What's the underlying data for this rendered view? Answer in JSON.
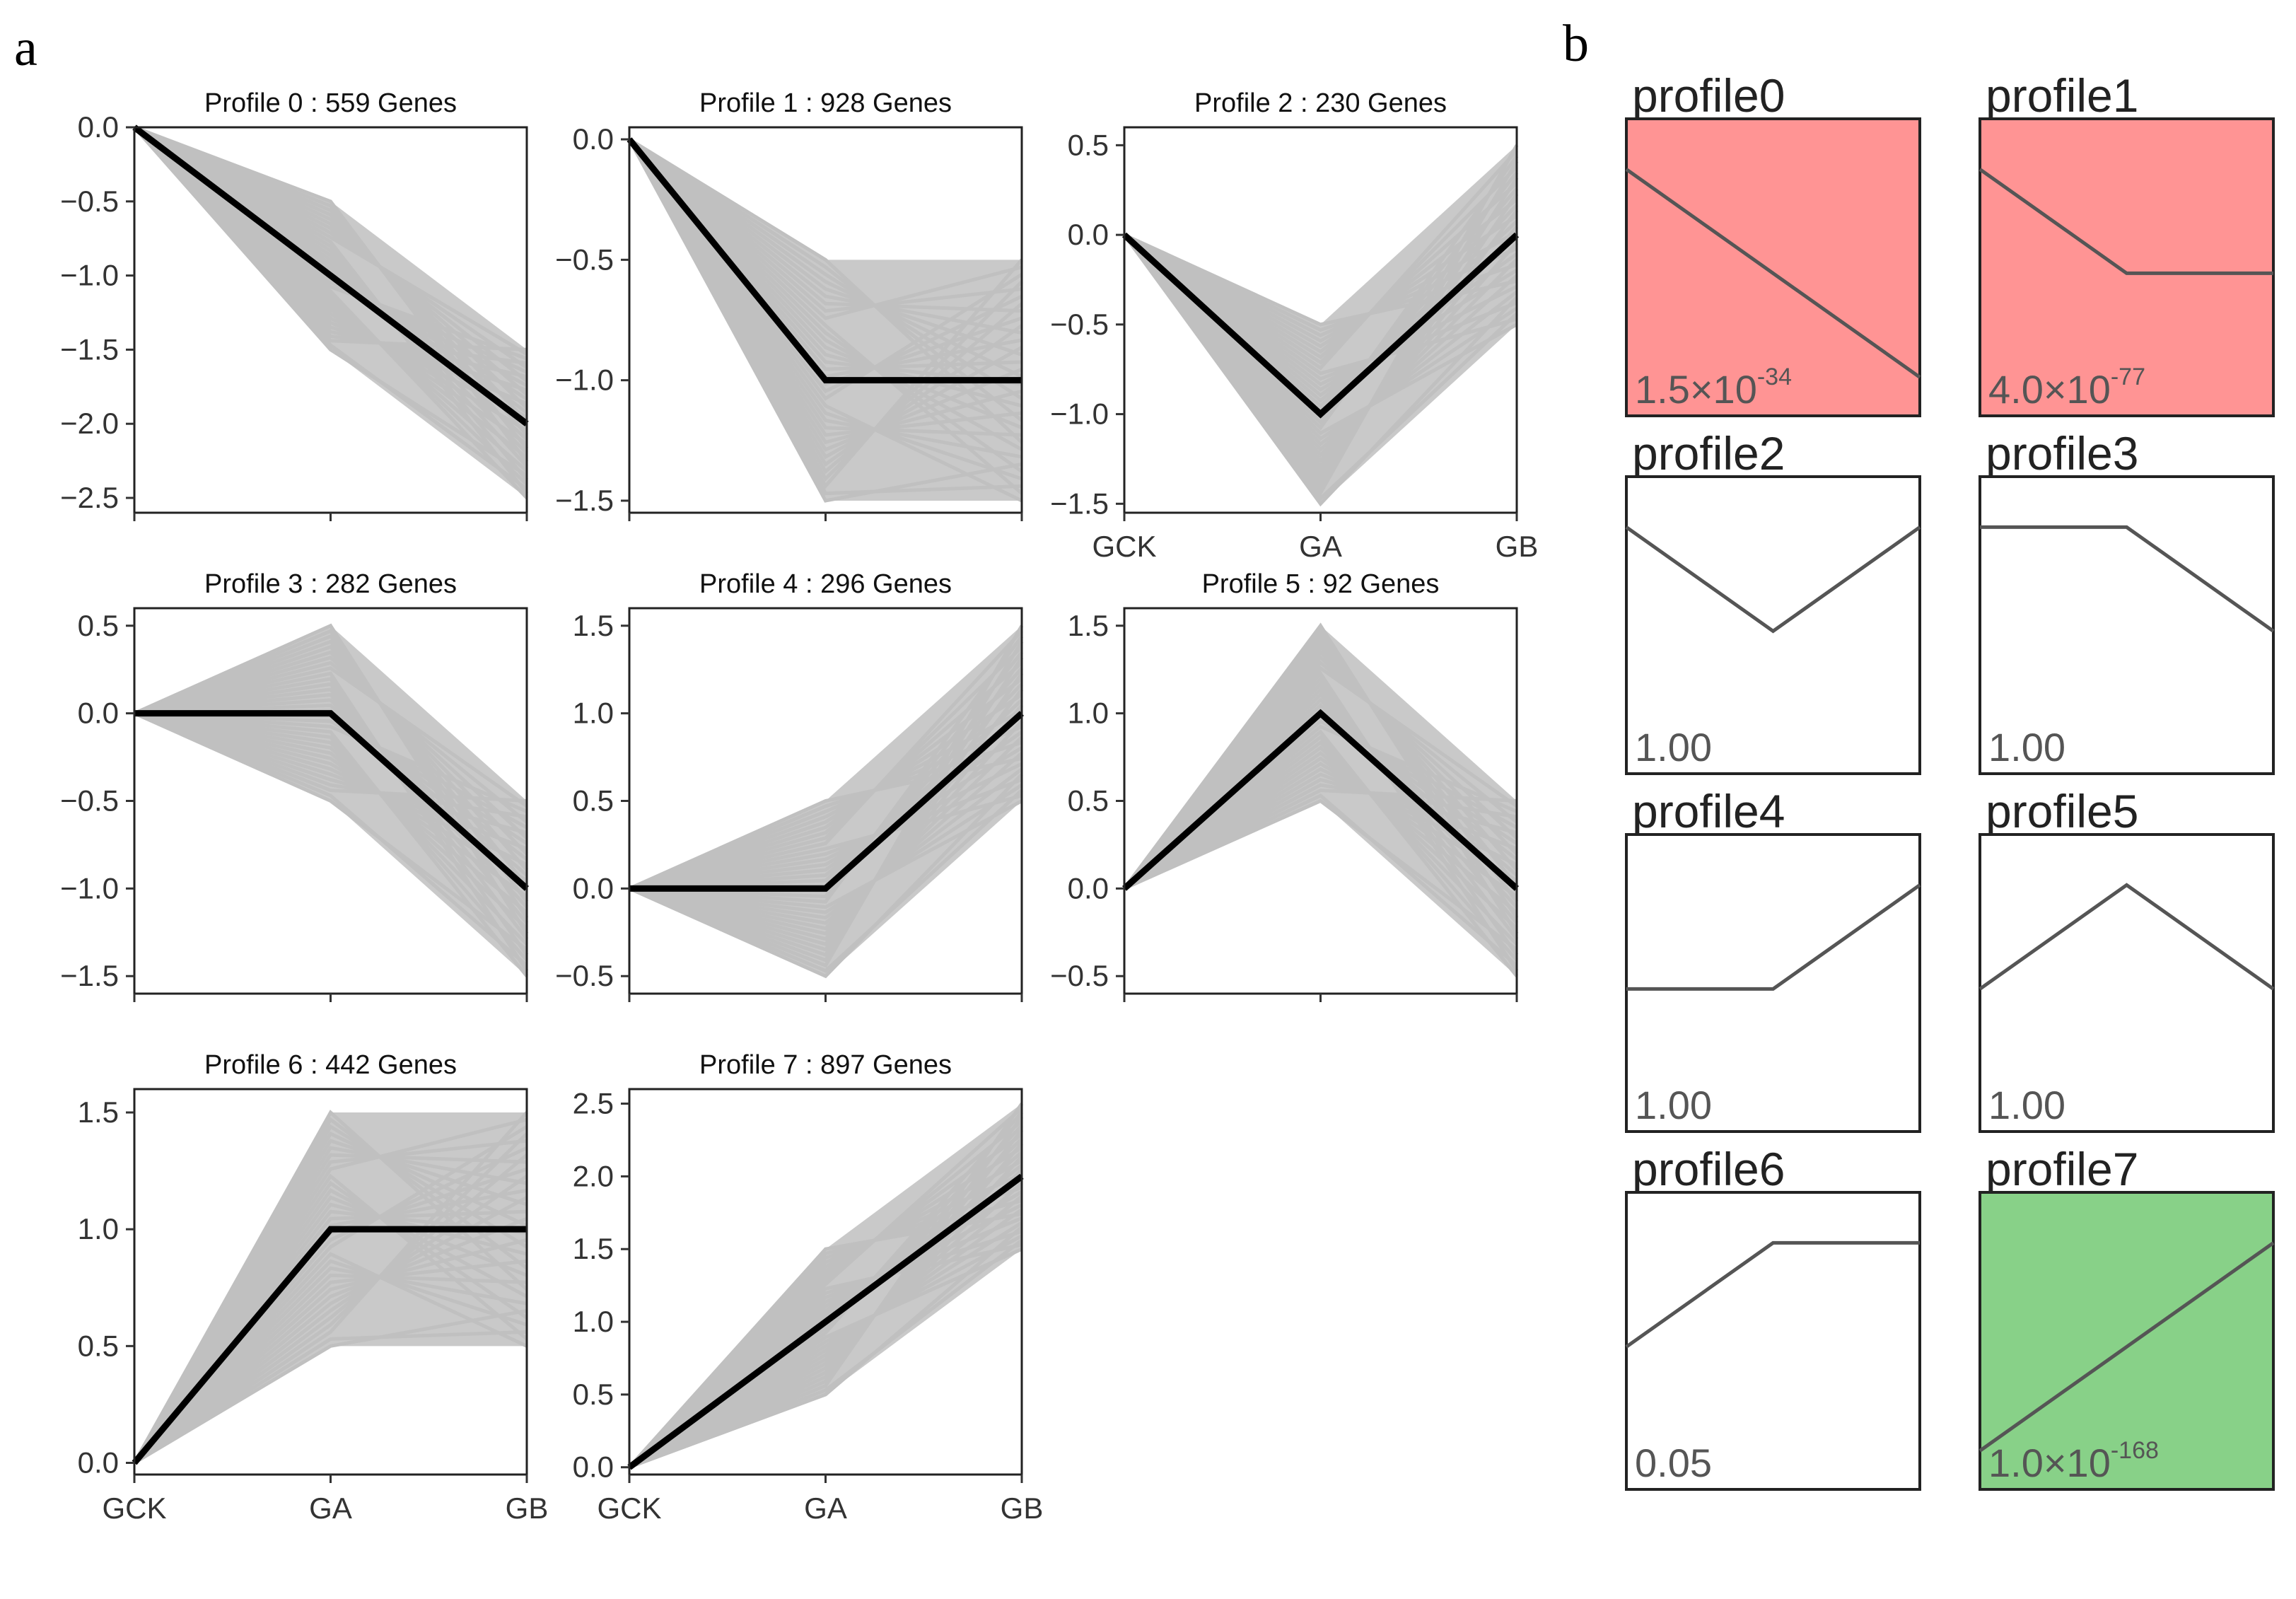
{
  "panels": {
    "a": "a",
    "b": "b"
  },
  "chart_data": [
    {
      "type": "line",
      "panel": "a",
      "x_categories": [
        "GCK",
        "GA",
        "GB"
      ],
      "profiles": [
        {
          "title": "Profile 0 : 559 Genes",
          "ylim": [
            -2.6,
            0.0
          ],
          "yticks": [
            "0.0",
            "−0.5",
            "−1.0",
            "−1.5",
            "−2.0",
            "−2.5"
          ],
          "ytick_values": [
            0,
            -0.5,
            -1,
            -1.5,
            -2,
            -2.5
          ],
          "model": [
            0,
            -1,
            -2
          ],
          "band_low": [
            0,
            -1.5,
            -2.5
          ],
          "band_high": [
            0,
            -0.5,
            -1.5
          ],
          "show_x_labels": false
        },
        {
          "title": "Profile 1 : 928 Genes",
          "ylim": [
            -1.55,
            0.05
          ],
          "yticks": [
            "0.0",
            "−0.5",
            "−1.0",
            "−1.5"
          ],
          "ytick_values": [
            0,
            -0.5,
            -1,
            -1.5
          ],
          "model": [
            0,
            -1,
            -1
          ],
          "band_low": [
            0,
            -1.5,
            -1.5
          ],
          "band_high": [
            0,
            -0.5,
            -0.5
          ],
          "show_x_labels": false
        },
        {
          "title": "Profile 2 : 230 Genes",
          "ylim": [
            -1.55,
            0.6
          ],
          "yticks": [
            "0.5",
            "0.0",
            "−0.5",
            "−1.0",
            "−1.5"
          ],
          "ytick_values": [
            0.5,
            0,
            -0.5,
            -1,
            -1.5
          ],
          "model": [
            0,
            -1,
            0
          ],
          "band_low": [
            0,
            -1.5,
            -0.5
          ],
          "band_high": [
            0,
            -0.5,
            0.5
          ],
          "show_x_labels": true
        },
        {
          "title": "Profile 3 : 282 Genes",
          "ylim": [
            -1.6,
            0.6
          ],
          "yticks": [
            "0.5",
            "0.0",
            "−0.5",
            "−1.0",
            "−1.5"
          ],
          "ytick_values": [
            0.5,
            0,
            -0.5,
            -1,
            -1.5
          ],
          "model": [
            0,
            0,
            -1
          ],
          "band_low": [
            0,
            -0.5,
            -1.5
          ],
          "band_high": [
            0,
            0.5,
            -0.5
          ],
          "show_x_labels": false
        },
        {
          "title": "Profile 4 : 296 Genes",
          "ylim": [
            -0.6,
            1.6
          ],
          "yticks": [
            "1.5",
            "1.0",
            "0.5",
            "0.0",
            "−0.5"
          ],
          "ytick_values": [
            1.5,
            1,
            0.5,
            0,
            -0.5
          ],
          "model": [
            0,
            0,
            1
          ],
          "band_low": [
            0,
            -0.5,
            0.5
          ],
          "band_high": [
            0,
            0.5,
            1.5
          ],
          "show_x_labels": false
        },
        {
          "title": "Profile 5 : 92 Genes",
          "ylim": [
            -0.6,
            1.6
          ],
          "yticks": [
            "1.5",
            "1.0",
            "0.5",
            "0.0",
            "−0.5"
          ],
          "ytick_values": [
            1.5,
            1,
            0.5,
            0,
            -0.5
          ],
          "model": [
            0,
            1,
            0
          ],
          "band_low": [
            0,
            0.5,
            -0.5
          ],
          "band_high": [
            0,
            1.5,
            0.5
          ],
          "show_x_labels": false
        },
        {
          "title": "Profile 6 : 442 Genes",
          "ylim": [
            -0.05,
            1.6
          ],
          "yticks": [
            "1.5",
            "1.0",
            "0.5",
            "0.0"
          ],
          "ytick_values": [
            1.5,
            1,
            0.5,
            0
          ],
          "model": [
            0,
            1,
            1
          ],
          "band_low": [
            0,
            0.5,
            0.5
          ],
          "band_high": [
            0,
            1.5,
            1.5
          ],
          "show_x_labels": true
        },
        {
          "title": "Profile 7 : 897 Genes",
          "ylim": [
            -0.05,
            2.6
          ],
          "yticks": [
            "2.5",
            "2.0",
            "1.5",
            "1.0",
            "0.5",
            "0.0"
          ],
          "ytick_values": [
            2.5,
            2,
            1.5,
            1,
            0.5,
            0
          ],
          "model": [
            0,
            1,
            2
          ],
          "band_low": [
            0,
            0.5,
            1.5
          ],
          "band_high": [
            0,
            1.5,
            2.5
          ],
          "show_x_labels": true
        }
      ],
      "colors": {
        "band": "#c0c0c0",
        "model": "#000000"
      }
    },
    {
      "type": "line",
      "panel": "b",
      "profiles": [
        {
          "title": "profile0",
          "model": [
            0,
            -1,
            -2
          ],
          "pvalue_base": "1.5×10",
          "pvalue_exp": "-34",
          "fill": "#ff9494"
        },
        {
          "title": "profile1",
          "model": [
            0,
            -1,
            -1
          ],
          "pvalue_base": "4.0×10",
          "pvalue_exp": "-77",
          "fill": "#ff9494"
        },
        {
          "title": "profile2",
          "model": [
            0,
            -1,
            0
          ],
          "pvalue_base": "1.00",
          "pvalue_exp": "",
          "fill": "#ffffff"
        },
        {
          "title": "profile3",
          "model": [
            0,
            0,
            -1
          ],
          "pvalue_base": "1.00",
          "pvalue_exp": "",
          "fill": "#ffffff"
        },
        {
          "title": "profile4",
          "model": [
            0,
            0,
            1
          ],
          "pvalue_base": "1.00",
          "pvalue_exp": "",
          "fill": "#ffffff"
        },
        {
          "title": "profile5",
          "model": [
            0,
            1,
            0
          ],
          "pvalue_base": "1.00",
          "pvalue_exp": "",
          "fill": "#ffffff"
        },
        {
          "title": "profile6",
          "model": [
            0,
            1,
            1
          ],
          "pvalue_base": "0.05",
          "pvalue_exp": "",
          "fill": "#ffffff"
        },
        {
          "title": "profile7",
          "model": [
            0,
            1,
            2
          ],
          "pvalue_base": "1.0×10",
          "pvalue_exp": "-168",
          "fill": "#88d188"
        }
      ],
      "colors": {
        "line": "#555555"
      }
    }
  ]
}
